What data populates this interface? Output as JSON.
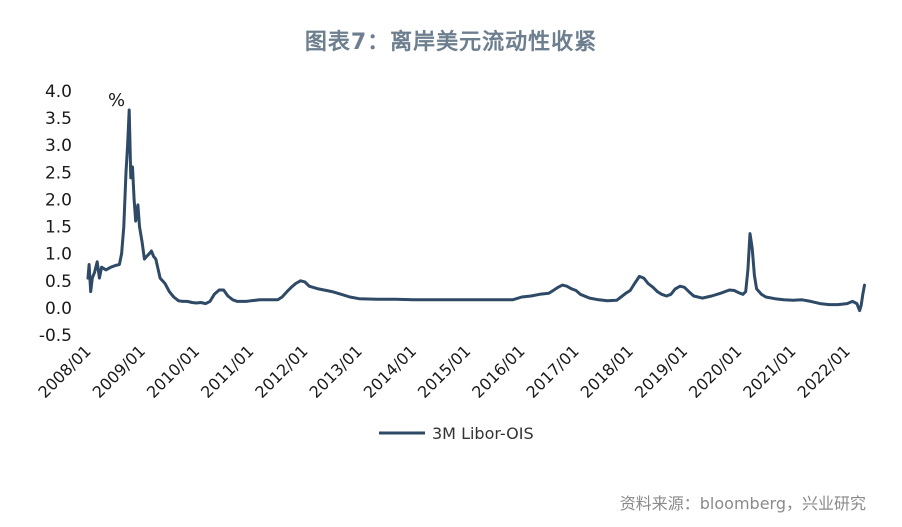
{
  "title": "图表7：离岸美元流动性收紧",
  "source": "资料来源：bloomberg，兴业研究",
  "chart_data": {
    "type": "line",
    "ylabel_unit": "%",
    "ylim": [
      -0.5,
      4.0
    ],
    "yticks": [
      "4.0",
      "3.5",
      "3.0",
      "2.5",
      "2.0",
      "1.5",
      "1.0",
      "0.5",
      "0.0",
      "-0.5"
    ],
    "xticks": [
      "2008/01",
      "2009/01",
      "2010/01",
      "2011/01",
      "2012/01",
      "2013/01",
      "2014/01",
      "2015/01",
      "2016/01",
      "2017/01",
      "2018/01",
      "2019/01",
      "2020/01",
      "2021/01",
      "2022/01"
    ],
    "legend_position": "bottom",
    "line_color": "#2e4a66",
    "series": [
      {
        "name": "3M Libor-OIS",
        "points": [
          [
            2008.0,
            0.55
          ],
          [
            2008.02,
            0.8
          ],
          [
            2008.05,
            0.3
          ],
          [
            2008.08,
            0.55
          ],
          [
            2008.12,
            0.65
          ],
          [
            2008.17,
            0.85
          ],
          [
            2008.21,
            0.55
          ],
          [
            2008.25,
            0.75
          ],
          [
            2008.33,
            0.7
          ],
          [
            2008.42,
            0.75
          ],
          [
            2008.5,
            0.78
          ],
          [
            2008.58,
            0.8
          ],
          [
            2008.62,
            1.0
          ],
          [
            2008.66,
            1.5
          ],
          [
            2008.7,
            2.5
          ],
          [
            2008.73,
            3.0
          ],
          [
            2008.76,
            3.65
          ],
          [
            2008.79,
            2.4
          ],
          [
            2008.82,
            2.6
          ],
          [
            2008.85,
            2.0
          ],
          [
            2008.88,
            1.6
          ],
          [
            2008.92,
            1.9
          ],
          [
            2008.95,
            1.5
          ],
          [
            2009.0,
            1.2
          ],
          [
            2009.04,
            0.9
          ],
          [
            2009.08,
            0.95
          ],
          [
            2009.13,
            1.0
          ],
          [
            2009.17,
            1.05
          ],
          [
            2009.21,
            0.95
          ],
          [
            2009.25,
            0.9
          ],
          [
            2009.33,
            0.55
          ],
          [
            2009.42,
            0.45
          ],
          [
            2009.5,
            0.3
          ],
          [
            2009.58,
            0.2
          ],
          [
            2009.67,
            0.13
          ],
          [
            2009.75,
            0.12
          ],
          [
            2009.83,
            0.12
          ],
          [
            2009.92,
            0.1
          ],
          [
            2010.0,
            0.09
          ],
          [
            2010.08,
            0.1
          ],
          [
            2010.17,
            0.08
          ],
          [
            2010.25,
            0.12
          ],
          [
            2010.33,
            0.25
          ],
          [
            2010.42,
            0.33
          ],
          [
            2010.5,
            0.33
          ],
          [
            2010.58,
            0.22
          ],
          [
            2010.67,
            0.15
          ],
          [
            2010.75,
            0.12
          ],
          [
            2010.83,
            0.12
          ],
          [
            2010.92,
            0.12
          ],
          [
            2011.0,
            0.13
          ],
          [
            2011.17,
            0.15
          ],
          [
            2011.33,
            0.15
          ],
          [
            2011.5,
            0.15
          ],
          [
            2011.58,
            0.2
          ],
          [
            2011.67,
            0.3
          ],
          [
            2011.75,
            0.38
          ],
          [
            2011.83,
            0.45
          ],
          [
            2011.92,
            0.5
          ],
          [
            2012.0,
            0.48
          ],
          [
            2012.08,
            0.4
          ],
          [
            2012.25,
            0.35
          ],
          [
            2012.5,
            0.3
          ],
          [
            2012.67,
            0.25
          ],
          [
            2012.83,
            0.2
          ],
          [
            2013.0,
            0.17
          ],
          [
            2013.33,
            0.16
          ],
          [
            2013.67,
            0.16
          ],
          [
            2014.0,
            0.15
          ],
          [
            2014.5,
            0.15
          ],
          [
            2015.0,
            0.15
          ],
          [
            2015.5,
            0.15
          ],
          [
            2015.83,
            0.15
          ],
          [
            2016.0,
            0.2
          ],
          [
            2016.17,
            0.22
          ],
          [
            2016.33,
            0.25
          ],
          [
            2016.5,
            0.27
          ],
          [
            2016.58,
            0.32
          ],
          [
            2016.67,
            0.38
          ],
          [
            2016.75,
            0.42
          ],
          [
            2016.83,
            0.4
          ],
          [
            2016.92,
            0.35
          ],
          [
            2017.0,
            0.32
          ],
          [
            2017.08,
            0.25
          ],
          [
            2017.25,
            0.18
          ],
          [
            2017.42,
            0.15
          ],
          [
            2017.58,
            0.13
          ],
          [
            2017.75,
            0.14
          ],
          [
            2017.83,
            0.2
          ],
          [
            2017.92,
            0.27
          ],
          [
            2018.0,
            0.32
          ],
          [
            2018.08,
            0.45
          ],
          [
            2018.17,
            0.58
          ],
          [
            2018.25,
            0.55
          ],
          [
            2018.33,
            0.45
          ],
          [
            2018.42,
            0.38
          ],
          [
            2018.5,
            0.3
          ],
          [
            2018.58,
            0.25
          ],
          [
            2018.67,
            0.22
          ],
          [
            2018.75,
            0.25
          ],
          [
            2018.83,
            0.35
          ],
          [
            2018.92,
            0.4
          ],
          [
            2019.0,
            0.38
          ],
          [
            2019.08,
            0.3
          ],
          [
            2019.17,
            0.22
          ],
          [
            2019.33,
            0.18
          ],
          [
            2019.5,
            0.22
          ],
          [
            2019.67,
            0.27
          ],
          [
            2019.83,
            0.33
          ],
          [
            2019.92,
            0.32
          ],
          [
            2020.0,
            0.28
          ],
          [
            2020.08,
            0.25
          ],
          [
            2020.13,
            0.3
          ],
          [
            2020.17,
            0.7
          ],
          [
            2020.21,
            1.37
          ],
          [
            2020.25,
            1.1
          ],
          [
            2020.29,
            0.6
          ],
          [
            2020.33,
            0.35
          ],
          [
            2020.42,
            0.25
          ],
          [
            2020.5,
            0.2
          ],
          [
            2020.67,
            0.17
          ],
          [
            2020.83,
            0.15
          ],
          [
            2021.0,
            0.14
          ],
          [
            2021.17,
            0.15
          ],
          [
            2021.33,
            0.12
          ],
          [
            2021.5,
            0.08
          ],
          [
            2021.67,
            0.06
          ],
          [
            2021.83,
            0.06
          ],
          [
            2022.0,
            0.08
          ],
          [
            2022.1,
            0.12
          ],
          [
            2022.18,
            0.08
          ],
          [
            2022.23,
            -0.05
          ],
          [
            2022.26,
            0.05
          ],
          [
            2022.29,
            0.25
          ],
          [
            2022.32,
            0.42
          ]
        ]
      }
    ]
  }
}
